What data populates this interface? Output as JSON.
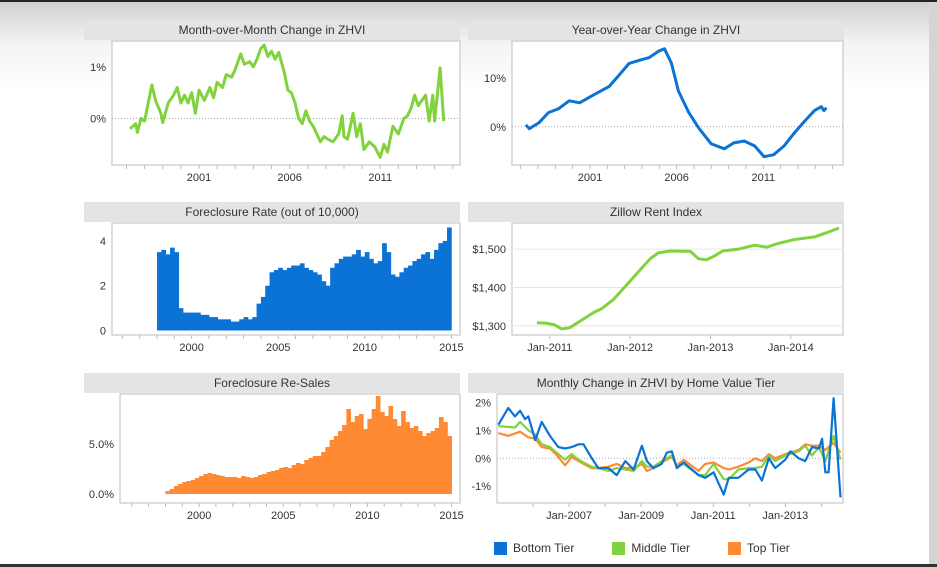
{
  "colors": {
    "green": "#80d33c",
    "blue": "#0b72d6",
    "orange": "#ff8a33"
  },
  "chart_data": [
    {
      "type": "line",
      "title": "Month-over-Month Change in ZHVI",
      "color": "#80d33c",
      "ylim": [
        -0.9,
        1.5
      ],
      "xlim": [
        1996.2,
        2015.4
      ],
      "yticks": [
        {
          "v": 0,
          "label": "0%"
        },
        {
          "v": 1,
          "label": "1%"
        }
      ],
      "xticks": [
        {
          "v": 2001,
          "label": "2001"
        },
        {
          "v": 2006,
          "label": "2006"
        },
        {
          "v": 2011,
          "label": "2011"
        }
      ],
      "zero_line": true,
      "x": [
        1997.2,
        1997.5,
        1997.6,
        1997.8,
        1998.0,
        1998.2,
        1998.4,
        1998.6,
        1998.9,
        1999.0,
        1999.3,
        1999.6,
        1999.8,
        2000.0,
        2000.2,
        2000.4,
        2000.6,
        2000.8,
        2001.0,
        2001.3,
        2001.6,
        2001.8,
        2002.0,
        2002.3,
        2002.5,
        2002.8,
        2003.0,
        2003.3,
        2003.5,
        2003.8,
        2004.0,
        2004.2,
        2004.4,
        2004.6,
        2004.8,
        2005.0,
        2005.2,
        2005.4,
        2005.7,
        2005.9,
        2006.1,
        2006.3,
        2006.5,
        2006.7,
        2006.9,
        2007.1,
        2007.3,
        2007.5,
        2007.7,
        2007.9,
        2008.1,
        2008.4,
        2008.7,
        2008.9,
        2009.0,
        2009.2,
        2009.5,
        2009.7,
        2009.9,
        2010.1,
        2010.4,
        2010.7,
        2011.0,
        2011.2,
        2011.4,
        2011.7,
        2012.0,
        2012.3,
        2012.5,
        2012.7,
        2012.9,
        2013.1,
        2013.3,
        2013.5,
        2013.7,
        2013.9,
        2014.0,
        2014.3,
        2014.5
      ],
      "y": [
        -0.2,
        -0.1,
        -0.27,
        0,
        -0.05,
        0.3,
        0.65,
        0.35,
        0.1,
        -0.08,
        0.3,
        0.45,
        0.6,
        0.3,
        0.45,
        0.3,
        0.5,
        0.1,
        0.55,
        0.35,
        0.6,
        0.4,
        0.7,
        0.6,
        0.85,
        0.8,
        0.95,
        1.25,
        1.05,
        1.1,
        1.0,
        1.15,
        1.35,
        1.42,
        1.2,
        1.3,
        1.15,
        1.28,
        0.9,
        0.55,
        0.5,
        0.3,
        0.0,
        -0.1,
        0.15,
        -0.05,
        -0.15,
        -0.3,
        -0.45,
        -0.35,
        -0.4,
        -0.45,
        -0.3,
        0.05,
        -0.35,
        -0.4,
        0.1,
        -0.35,
        -0.1,
        -0.6,
        -0.45,
        -0.55,
        -0.75,
        -0.5,
        -0.65,
        -0.15,
        -0.3,
        0.0,
        0.05,
        0.2,
        0.45,
        0.25,
        0.35,
        0.45,
        -0.05,
        0.45,
        -0.05,
        0.98,
        -0.05
      ]
    },
    {
      "type": "line",
      "title": "Year-over-Year Change in ZHVI",
      "color": "#0b72d6",
      "ylim": [
        -7.8,
        17.5
      ],
      "xlim": [
        1996.5,
        2015.6
      ],
      "yticks": [
        {
          "v": 0,
          "label": "0%"
        },
        {
          "v": 10,
          "label": "10%"
        }
      ],
      "xticks": [
        {
          "v": 2001,
          "label": "2001"
        },
        {
          "v": 2006,
          "label": "2006"
        },
        {
          "v": 2011,
          "label": "2011"
        }
      ],
      "zero_line": true,
      "x": [
        1997.3,
        1997.5,
        1998.05,
        1998.6,
        1999.2,
        1999.8,
        2000.4,
        2001.2,
        2002.1,
        2002.7,
        2003.25,
        2003.8,
        2004.4,
        2005.0,
        2005.3,
        2005.7,
        2006.1,
        2006.7,
        2007.3,
        2008.0,
        2008.75,
        2009.3,
        2009.9,
        2010.5,
        2011.05,
        2011.6,
        2012.2,
        2012.8,
        2013.4,
        2013.95,
        2014.35,
        2014.5,
        2014.65
      ],
      "y": [
        0.4,
        -0.4,
        0.8,
        2.9,
        3.7,
        5.3,
        4.9,
        6.5,
        8.2,
        10.6,
        12.9,
        13.5,
        14.1,
        15.5,
        15.9,
        13,
        7.3,
        2.9,
        -0.4,
        -3.5,
        -4.5,
        -3.3,
        -2.9,
        -3.9,
        -6.1,
        -5.7,
        -3.9,
        -1.2,
        1.2,
        3.3,
        4.1,
        3.3,
        3.9
      ]
    },
    {
      "type": "bar",
      "title": "Foreclosure Rate (out of 10,000)",
      "color": "#0b72d6",
      "ylim": [
        -0.2,
        4.8
      ],
      "xlim": [
        1995.4,
        2015.5
      ],
      "period": 0.25,
      "yticks": [
        {
          "v": 0,
          "label": "0"
        },
        {
          "v": 2,
          "label": "2"
        },
        {
          "v": 4,
          "label": "4"
        }
      ],
      "xticks": [
        {
          "v": 2000,
          "label": "2000"
        },
        {
          "v": 2005,
          "label": "2005"
        },
        {
          "v": 2010,
          "label": "2010"
        },
        {
          "v": 2015,
          "label": "2015"
        }
      ],
      "start": 1998.0,
      "values": [
        3.5,
        3.6,
        3.4,
        3.7,
        3.5,
        1.0,
        0.8,
        0.8,
        0.8,
        0.8,
        0.7,
        0.7,
        0.6,
        0.6,
        0.5,
        0.5,
        0.5,
        0.4,
        0.4,
        0.5,
        0.6,
        0.5,
        0.6,
        1.2,
        1.5,
        2.0,
        2.6,
        2.7,
        2.8,
        2.7,
        2.8,
        2.9,
        2.9,
        3.0,
        2.8,
        2.7,
        2.6,
        2.5,
        2.2,
        2.0,
        2.8,
        3.0,
        3.2,
        3.3,
        3.3,
        3.4,
        3.6,
        3.3,
        3.5,
        3.2,
        3.0,
        3.1,
        3.9,
        3.5,
        2.5,
        2.4,
        2.6,
        2.8,
        2.9,
        3.1,
        3.2,
        3.4,
        3.5,
        3.2,
        3.6,
        3.9,
        4.0,
        4.6
      ]
    },
    {
      "type": "line",
      "title": "Zillow Rent Index",
      "color": "#80d33c",
      "ylim": [
        1276,
        1568
      ],
      "xlim": [
        2010.53,
        2014.65
      ],
      "grid": true,
      "yticks": [
        {
          "v": 1300,
          "label": "$1,300"
        },
        {
          "v": 1400,
          "label": "$1,400"
        },
        {
          "v": 1500,
          "label": "$1,500"
        }
      ],
      "xticks": [
        {
          "v": 2011,
          "label": "Jan-2011"
        },
        {
          "v": 2012,
          "label": "Jan-2012"
        },
        {
          "v": 2013,
          "label": "Jan-2013"
        },
        {
          "v": 2014,
          "label": "Jan-2014"
        }
      ],
      "x": [
        2010.84,
        2010.95,
        2011.05,
        2011.15,
        2011.25,
        2011.4,
        2011.55,
        2011.65,
        2011.8,
        2011.95,
        2012.1,
        2012.25,
        2012.35,
        2012.5,
        2012.75,
        2012.85,
        2012.95,
        2013.05,
        2013.15,
        2013.35,
        2013.55,
        2013.7,
        2013.85,
        2014.05,
        2014.3,
        2014.45,
        2014.6
      ],
      "y": [
        1308,
        1307,
        1303,
        1292,
        1295,
        1315,
        1335,
        1345,
        1370,
        1405,
        1440,
        1475,
        1490,
        1495,
        1494,
        1475,
        1472,
        1482,
        1495,
        1500,
        1510,
        1505,
        1515,
        1525,
        1532,
        1543,
        1555
      ]
    },
    {
      "type": "bar",
      "title": "Foreclosure Re-Sales",
      "color": "#ff8a33",
      "ylim": [
        -0.9,
        10
      ],
      "xlim": [
        1995.3,
        2015.5
      ],
      "period": 0.25,
      "yticks": [
        {
          "v": 0,
          "label": "0.0%"
        },
        {
          "v": 5,
          "label": "5.0%"
        }
      ],
      "xticks": [
        {
          "v": 2000,
          "label": "2000"
        },
        {
          "v": 2005,
          "label": "2005"
        },
        {
          "v": 2010,
          "label": "2010"
        },
        {
          "v": 2015,
          "label": "2015"
        }
      ],
      "start": 1998.0,
      "values": [
        0.3,
        0.5,
        0.8,
        1.0,
        1.2,
        1.3,
        1.4,
        1.6,
        1.8,
        2.0,
        2.1,
        2.0,
        1.9,
        1.8,
        1.7,
        1.7,
        1.7,
        1.6,
        1.8,
        1.7,
        1.6,
        1.7,
        1.9,
        2.0,
        2.2,
        2.3,
        2.4,
        2.6,
        2.7,
        2.6,
        2.9,
        3.1,
        3.0,
        3.4,
        3.6,
        3.8,
        3.8,
        4.2,
        4.7,
        5.4,
        5.8,
        6.3,
        6.9,
        8.5,
        7.2,
        7.8,
        8.0,
        6.5,
        7.5,
        8.5,
        9.8,
        8.2,
        7.8,
        8.8,
        7.5,
        6.8,
        8.3,
        7.2,
        6.6,
        6.8,
        6.3,
        5.8,
        6.1,
        6.3,
        6.6,
        7.7,
        7.2,
        5.8
      ]
    },
    {
      "type": "line",
      "title": "Monthly Change in ZHVI by Home Value Tier",
      "ylim": [
        -1.6,
        2.3
      ],
      "xlim": [
        2005.0,
        2014.6
      ],
      "zero_line": true,
      "yticks": [
        {
          "v": -1,
          "label": "-1%"
        },
        {
          "v": 0,
          "label": "0%"
        },
        {
          "v": 1,
          "label": "1%"
        },
        {
          "v": 2,
          "label": "2%"
        }
      ],
      "xticks": [
        {
          "v": 2007,
          "label": "Jan-2007"
        },
        {
          "v": 2009,
          "label": "Jan-2009"
        },
        {
          "v": 2011,
          "label": "Jan-2011"
        },
        {
          "v": 2013,
          "label": "Jan-2013"
        }
      ],
      "legend": "bottom",
      "series": [
        {
          "name": "Top Tier",
          "color": "#ff8a33",
          "x": [
            2005.04,
            2005.31,
            2005.64,
            2005.87,
            2006.06,
            2006.24,
            2006.47,
            2006.7,
            2006.89,
            2007.07,
            2007.26,
            2007.4,
            2007.63,
            2007.81,
            2008.09,
            2008.32,
            2008.56,
            2008.79,
            2009.02,
            2009.16,
            2009.34,
            2009.57,
            2009.85,
            2009.99,
            2010.18,
            2010.59,
            2010.78,
            2011.01,
            2011.29,
            2011.43,
            2011.7,
            2011.98,
            2012.17,
            2012.35,
            2012.54,
            2012.72,
            2013.0,
            2013.37,
            2013.55,
            2013.74,
            2013.93,
            2014.11,
            2014.34,
            2014.53
          ],
          "y": [
            0.9,
            0.8,
            0.95,
            0.75,
            0.7,
            0.4,
            0.35,
            0.05,
            -0.25,
            0.05,
            -0.1,
            -0.2,
            -0.35,
            -0.35,
            -0.3,
            -0.2,
            -0.35,
            -0.35,
            -0.2,
            -0.45,
            -0.35,
            -0.15,
            0.05,
            -0.25,
            -0.05,
            -0.45,
            -0.2,
            -0.15,
            -0.35,
            -0.4,
            -0.3,
            -0.15,
            0.0,
            -0.1,
            0.15,
            0.0,
            0.15,
            0.3,
            0.5,
            0.45,
            0.45,
            0.3,
            0.55,
            0.2
          ]
        },
        {
          "name": "Middle Tier",
          "color": "#80d33c",
          "x": [
            2005.04,
            2005.5,
            2005.64,
            2005.87,
            2006.06,
            2006.24,
            2006.47,
            2006.7,
            2006.89,
            2007.07,
            2007.26,
            2007.4,
            2007.63,
            2007.81,
            2008.09,
            2008.32,
            2008.56,
            2008.79,
            2009.02,
            2009.16,
            2009.34,
            2009.57,
            2009.85,
            2009.99,
            2010.18,
            2010.59,
            2010.78,
            2011.01,
            2011.29,
            2011.43,
            2011.7,
            2011.98,
            2012.17,
            2012.35,
            2012.54,
            2012.72,
            2013.0,
            2013.37,
            2013.55,
            2013.74,
            2013.93,
            2014.11,
            2014.34,
            2014.53
          ],
          "y": [
            1.15,
            1.1,
            1.3,
            1.0,
            0.85,
            0.5,
            0.4,
            0.15,
            -0.05,
            0.15,
            -0.05,
            -0.15,
            -0.3,
            -0.35,
            -0.45,
            -0.35,
            -0.4,
            -0.45,
            -0.1,
            -0.3,
            -0.3,
            -0.1,
            0.1,
            -0.3,
            -0.2,
            -0.6,
            -0.6,
            -0.2,
            -0.75,
            -0.75,
            -0.4,
            -0.35,
            -0.35,
            -0.3,
            0.1,
            -0.1,
            0.1,
            0.25,
            0.45,
            0.1,
            0.4,
            -0.1,
            0.8,
            -0.05
          ]
        },
        {
          "name": "Bottom Tier",
          "color": "#0b72d6",
          "x": [
            2005.04,
            2005.31,
            2005.5,
            2005.64,
            2005.78,
            2005.87,
            2006.06,
            2006.24,
            2006.47,
            2006.7,
            2006.89,
            2007.07,
            2007.26,
            2007.4,
            2007.63,
            2007.81,
            2008.09,
            2008.32,
            2008.56,
            2008.79,
            2009.02,
            2009.16,
            2009.34,
            2009.57,
            2009.71,
            2009.85,
            2009.99,
            2010.18,
            2010.59,
            2010.78,
            2011.01,
            2011.29,
            2011.43,
            2011.7,
            2011.98,
            2012.17,
            2012.35,
            2012.54,
            2012.72,
            2013.0,
            2013.14,
            2013.37,
            2013.55,
            2013.74,
            2013.93,
            2014.02,
            2014.11,
            2014.2,
            2014.34,
            2014.53
          ],
          "y": [
            1.2,
            1.8,
            1.5,
            1.7,
            1.4,
            1.5,
            0.65,
            1.3,
            0.8,
            0.4,
            0.35,
            0.4,
            0.5,
            0.5,
            0.0,
            -0.35,
            -0.35,
            -0.6,
            -0.1,
            -0.4,
            0.45,
            -0.1,
            -0.35,
            -0.2,
            0.2,
            0.25,
            -0.35,
            -0.15,
            -0.6,
            -0.7,
            -0.5,
            -1.3,
            -0.7,
            -0.7,
            -0.4,
            -0.4,
            -0.8,
            0.0,
            -0.35,
            -0.05,
            0.25,
            0.0,
            -0.1,
            0.4,
            0.35,
            0.7,
            -0.5,
            -0.5,
            2.15,
            -1.4
          ]
        }
      ]
    }
  ],
  "legend": [
    {
      "label": "Bottom Tier",
      "color": "#0b72d6"
    },
    {
      "label": "Middle Tier",
      "color": "#80d33c"
    },
    {
      "label": "Top Tier",
      "color": "#ff8a33"
    }
  ]
}
